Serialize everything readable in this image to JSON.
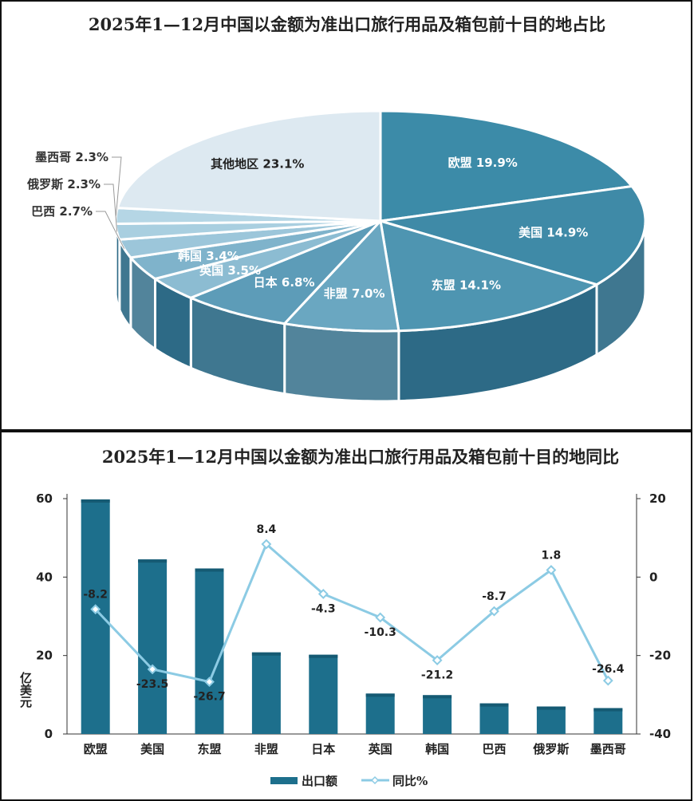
{
  "colors": {
    "bar": "#1d6f8c",
    "bar_top": "#155a73",
    "line": "#8ccbe4",
    "pie_fill": [
      "#3c8ba8",
      "#3f8aa7",
      "#4e95b1",
      "#6aa7c1",
      "#5d9cb8",
      "#8cbcd2",
      "#7fb3cb",
      "#9cc6da",
      "#a9cfe0",
      "#b5d6e5",
      "#dde9f1"
    ],
    "pie_side": "#2d6a86"
  },
  "chart_data": [
    {
      "type": "pie",
      "title": "2025年1—12月中国以金额为准出口旅行用品及箱包前十目的地占比",
      "slices": [
        {
          "name": "欧盟",
          "label": "欧盟 19.9%",
          "value": 19.9
        },
        {
          "name": "美国",
          "label": "美国 14.9%",
          "value": 14.9
        },
        {
          "name": "东盟",
          "label": "东盟 14.1%",
          "value": 14.1
        },
        {
          "name": "非盟",
          "label": "非盟 7.0%",
          "value": 7.0
        },
        {
          "name": "日本",
          "label": "日本 6.8%",
          "value": 6.8
        },
        {
          "name": "英国",
          "label": "英国 3.5%",
          "value": 3.5
        },
        {
          "name": "韩国",
          "label": "韩国 3.4%",
          "value": 3.4
        },
        {
          "name": "巴西",
          "label": "巴西 2.7%",
          "value": 2.7
        },
        {
          "name": "俄罗斯",
          "label": "俄罗斯 2.3%",
          "value": 2.3
        },
        {
          "name": "墨西哥",
          "label": "墨西哥 2.3%",
          "value": 2.3
        },
        {
          "name": "其他地区",
          "label": "其他地区 23.1%",
          "value": 23.1
        }
      ]
    },
    {
      "type": "bar",
      "title": "2025年1—12月中国以金额为准出口旅行用品及箱包前十目的地同比",
      "categories": [
        "欧盟",
        "美国",
        "东盟",
        "非盟",
        "日本",
        "英国",
        "韩国",
        "巴西",
        "俄罗斯",
        "墨西哥"
      ],
      "series": [
        {
          "name": "出口额",
          "type": "bar",
          "axis": "left",
          "values": [
            59.8,
            44.5,
            42.2,
            20.8,
            20.2,
            10.3,
            9.9,
            7.8,
            7.0,
            6.6
          ]
        },
        {
          "name": "同比%",
          "type": "line",
          "axis": "right",
          "values": [
            -8.2,
            -23.5,
            -26.7,
            8.4,
            -4.3,
            -10.3,
            -21.2,
            -8.7,
            1.8,
            -26.4
          ],
          "labels": [
            "-8.2",
            "-23.5",
            "-26.7",
            "8.4",
            "-4.3",
            "-10.3",
            "-21.2",
            "-8.7",
            "1.8",
            "-26.4"
          ]
        }
      ],
      "ylabel": "亿美元",
      "ylim": [
        0,
        60
      ],
      "yticks": [
        "0",
        "20",
        "40",
        "60"
      ],
      "y2lim": [
        -40,
        20
      ],
      "y2ticks": [
        "-40",
        "-20",
        "0",
        "20"
      ],
      "grid": false,
      "legend": "bottom"
    }
  ]
}
